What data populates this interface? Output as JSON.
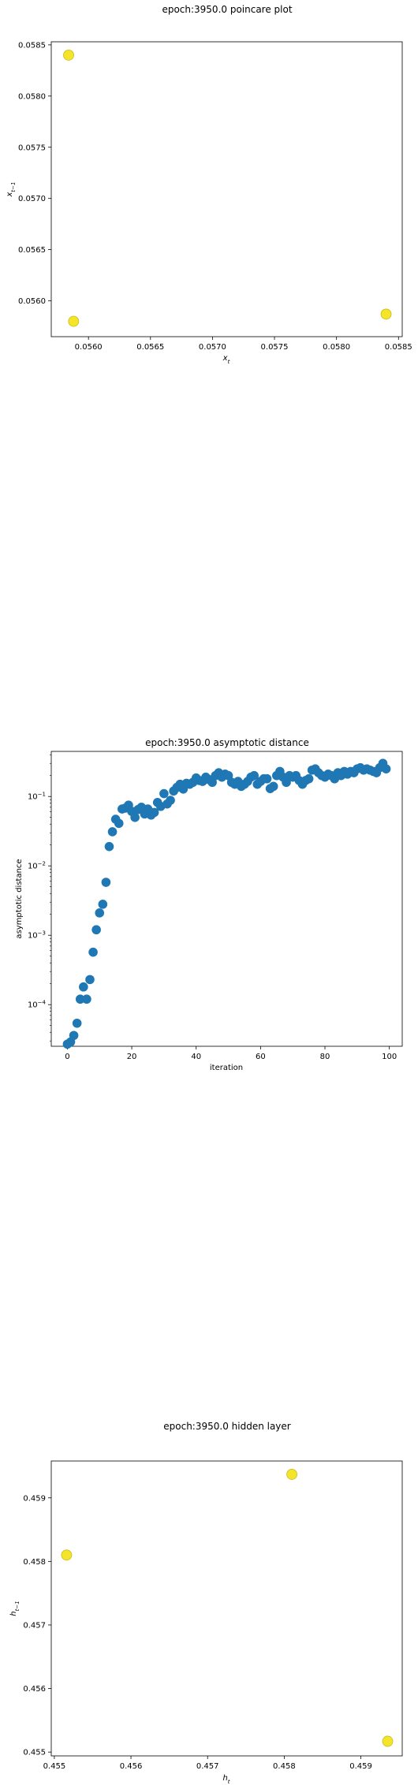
{
  "chart_data": [
    {
      "type": "scatter",
      "title": "epoch:3950.0 poincare plot",
      "xlabel_base": "x",
      "xlabel_sub": "t",
      "ylabel_base": "x",
      "ylabel_sub": "t−1",
      "xlim": [
        0.0557,
        0.05853
      ],
      "ylim": [
        0.05565,
        0.05853
      ],
      "xticks": [
        "0.0560",
        "0.0565",
        "0.0570",
        "0.0575",
        "0.0580",
        "0.0585"
      ],
      "xtick_values": [
        0.056,
        0.0565,
        0.057,
        0.0575,
        0.058,
        0.0585
      ],
      "yticks": [
        "0.0560",
        "0.0565",
        "0.0570",
        "0.0575",
        "0.0580",
        "0.0585"
      ],
      "ytick_values": [
        0.056,
        0.0565,
        0.057,
        0.0575,
        0.058,
        0.0585
      ],
      "points": [
        {
          "x": 0.05584,
          "y": 0.0584
        },
        {
          "x": 0.05588,
          "y": 0.0558
        },
        {
          "x": 0.0584,
          "y": 0.05587
        }
      ],
      "marker_color": "#f5e52a",
      "grid": false
    },
    {
      "type": "scatter",
      "title": "epoch:3950.0 asymptotic distance",
      "xlabel": "iteration",
      "ylabel": "asymptotic distance",
      "yscale": "log",
      "xlim": [
        -5,
        104
      ],
      "ylim_log10": [
        -4.6,
        -0.35
      ],
      "xticks": [
        "0",
        "20",
        "40",
        "60",
        "80",
        "100"
      ],
      "xtick_values": [
        0,
        20,
        40,
        60,
        80,
        100
      ],
      "yticks_exp": [
        "−4",
        "−3",
        "−2",
        "−1"
      ],
      "ytick_log10": [
        -4,
        -3,
        -2,
        -1
      ],
      "x": [
        0,
        1,
        2,
        3,
        4,
        5,
        6,
        7,
        8,
        9,
        10,
        11,
        12,
        13,
        14,
        15,
        16,
        17,
        18,
        19,
        20,
        21,
        22,
        23,
        24,
        25,
        26,
        27,
        28,
        29,
        30,
        31,
        32,
        33,
        34,
        35,
        36,
        37,
        38,
        39,
        40,
        41,
        42,
        43,
        44,
        45,
        46,
        47,
        48,
        49,
        50,
        51,
        52,
        53,
        54,
        55,
        56,
        57,
        58,
        59,
        60,
        61,
        62,
        63,
        64,
        65,
        66,
        67,
        68,
        69,
        70,
        71,
        72,
        73,
        74,
        75,
        76,
        77,
        78,
        79,
        80,
        81,
        82,
        83,
        84,
        85,
        86,
        87,
        88,
        89,
        90,
        91,
        92,
        93,
        94,
        95,
        96,
        97,
        98,
        99
      ],
      "y": [
        2.7e-05,
        2.9e-05,
        3.6e-05,
        5.4e-05,
        0.00012,
        0.00018,
        0.00012,
        0.00023,
        0.00057,
        0.0012,
        0.0021,
        0.0028,
        0.0058,
        0.019,
        0.031,
        0.047,
        0.041,
        0.066,
        0.068,
        0.075,
        0.061,
        0.05,
        0.065,
        0.07,
        0.056,
        0.066,
        0.054,
        0.059,
        0.082,
        0.072,
        0.11,
        0.078,
        0.088,
        0.12,
        0.135,
        0.15,
        0.128,
        0.155,
        0.15,
        0.16,
        0.185,
        0.17,
        0.165,
        0.19,
        0.175,
        0.16,
        0.2,
        0.22,
        0.19,
        0.21,
        0.2,
        0.16,
        0.15,
        0.165,
        0.14,
        0.15,
        0.165,
        0.19,
        0.2,
        0.15,
        0.165,
        0.18,
        0.18,
        0.13,
        0.14,
        0.2,
        0.23,
        0.19,
        0.16,
        0.2,
        0.19,
        0.2,
        0.17,
        0.15,
        0.17,
        0.18,
        0.24,
        0.25,
        0.22,
        0.2,
        0.19,
        0.21,
        0.2,
        0.18,
        0.22,
        0.2,
        0.23,
        0.21,
        0.23,
        0.22,
        0.25,
        0.26,
        0.24,
        0.25,
        0.24,
        0.23,
        0.22,
        0.26,
        0.3,
        0.25
      ],
      "marker_color": "#1f77b4",
      "grid": false
    },
    {
      "type": "scatter",
      "title": "epoch:3950.0 hidden layer",
      "xlabel_base": "h",
      "xlabel_sub": "t",
      "ylabel_base": "h",
      "ylabel_sub": "t−1",
      "xlim": [
        0.45496,
        0.45954
      ],
      "ylim": [
        0.45494,
        0.45958
      ],
      "xticks": [
        "0.455",
        "0.456",
        "0.457",
        "0.458",
        "0.459"
      ],
      "xtick_values": [
        0.455,
        0.456,
        0.457,
        0.458,
        0.459
      ],
      "yticks": [
        "0.455",
        "0.456",
        "0.457",
        "0.458",
        "0.459"
      ],
      "ytick_values": [
        0.455,
        0.456,
        0.457,
        0.458,
        0.459
      ],
      "points": [
        {
          "x": 0.45516,
          "y": 0.4581
        },
        {
          "x": 0.4581,
          "y": 0.45937
        },
        {
          "x": 0.45935,
          "y": 0.45517
        }
      ],
      "marker_color": "#f5e52a",
      "grid": false
    }
  ]
}
